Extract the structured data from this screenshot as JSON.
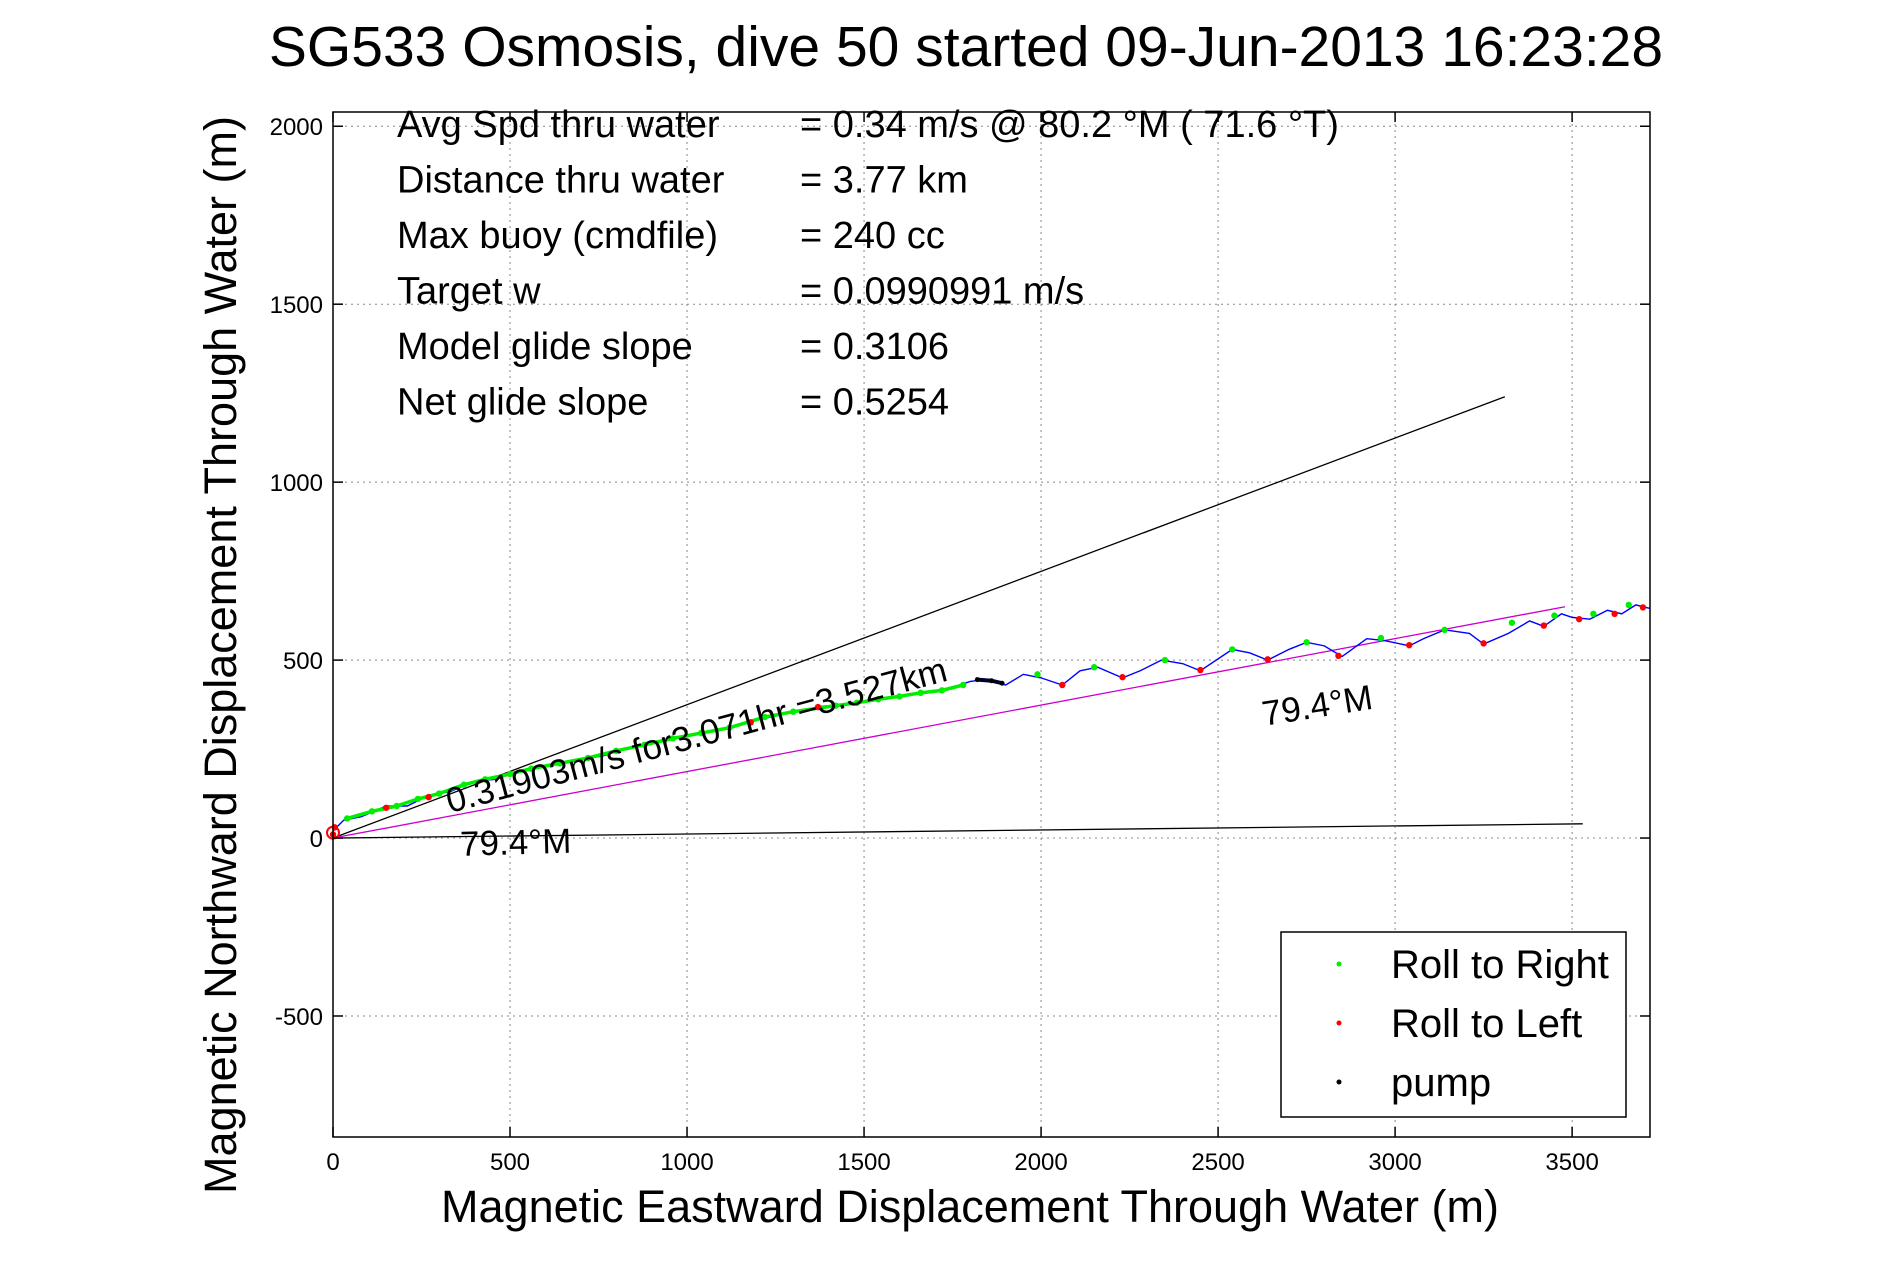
{
  "chart_data": {
    "type": "line",
    "title": "SG533 Osmosis, dive 50 started 09-Jun-2013 16:23:28",
    "xlabel": "Magnetic Eastward Displacement Through Water (m)",
    "ylabel": "Magnetic Northward Displacement Through Water (m)",
    "xlim": [
      0,
      3720
    ],
    "ylim": [
      -840,
      2040
    ],
    "xticks": [
      0,
      500,
      1000,
      1500,
      2000,
      2500,
      3000,
      3500
    ],
    "yticks": [
      -500,
      0,
      500,
      1000,
      1500,
      2000
    ],
    "xtick_labels": [
      "0",
      "500",
      "1000",
      "1500",
      "2000",
      "2500",
      "3000",
      "3500"
    ],
    "ytick_labels": [
      "-500",
      "0",
      "500",
      "1000",
      "1500",
      "2000"
    ],
    "grid": true,
    "stats": [
      {
        "label": "Avg Spd thru water",
        "value": "=  0.34 m/s @  80.2 °M ( 71.6 °T)"
      },
      {
        "label": "Distance thru water",
        "value": "=  3.77 km"
      },
      {
        "label": "Max buoy (cmdfile)",
        "value": "= 240 cc"
      },
      {
        "label": "Target w",
        "value": "= 0.0990991 m/s"
      },
      {
        "label": "Model glide slope",
        "value": "= 0.3106"
      },
      {
        "label": "Net glide slope",
        "value": "= 0.5254"
      }
    ],
    "annotations": [
      {
        "text": "0.31903m/s for3.071hr =3.527km",
        "x": 330,
        "y": 70,
        "angle_deg": -14.9
      },
      {
        "text": "79.4°M",
        "x": 360,
        "y": -50,
        "angle_deg": -1.6
      },
      {
        "text": "79.4°M",
        "x": 2630,
        "y": 315,
        "angle_deg": -9.0
      }
    ],
    "reference_lines": [
      {
        "name": "upper-bound-line",
        "color": "#000000",
        "x": [
          0,
          3310
        ],
        "y": [
          0,
          1240
        ]
      },
      {
        "name": "lower-bound-line",
        "color": "#000000",
        "x": [
          0,
          3530
        ],
        "y": [
          0,
          40
        ]
      },
      {
        "name": "heading-line",
        "color": "#cc00cc",
        "x": [
          0,
          3480
        ],
        "y": [
          0,
          650
        ]
      }
    ],
    "series": [
      {
        "name": "track",
        "color": "#0000ff",
        "x": [
          0,
          30,
          80,
          150,
          210,
          270,
          330,
          400,
          460,
          530,
          600,
          680,
          760,
          840,
          920,
          1000,
          1080,
          1150,
          1190,
          1260,
          1330,
          1380,
          1440,
          1500,
          1560,
          1620,
          1680,
          1740,
          1800,
          1840,
          1900,
          1950,
          2000,
          2060,
          2110,
          2160,
          2230,
          2280,
          2340,
          2400,
          2450,
          2540,
          2590,
          2640,
          2700,
          2750,
          2800,
          2850,
          2920,
          2970,
          3040,
          3080,
          3140,
          3210,
          3250,
          3320,
          3380,
          3420,
          3470,
          3500,
          3550,
          3600,
          3640,
          3680,
          3720
        ],
        "y": [
          20,
          50,
          60,
          90,
          90,
          120,
          130,
          160,
          165,
          190,
          200,
          220,
          230,
          255,
          270,
          290,
          300,
          320,
          330,
          345,
          360,
          370,
          375,
          385,
          392,
          400,
          410,
          420,
          440,
          445,
          430,
          460,
          450,
          430,
          470,
          480,
          450,
          470,
          500,
          490,
          470,
          530,
          520,
          500,
          530,
          550,
          540,
          510,
          560,
          555,
          540,
          560,
          585,
          575,
          545,
          575,
          610,
          595,
          630,
          620,
          615,
          640,
          630,
          655,
          645
        ]
      },
      {
        "name": "Roll to Right",
        "color": "#00ee00",
        "x": [
          40,
          110,
          180,
          240,
          300,
          370,
          430,
          500,
          560,
          640,
          720,
          800,
          880,
          960,
          1040,
          1120,
          1220,
          1300,
          1420,
          1480,
          1540,
          1600,
          1660,
          1720,
          1780,
          1990,
          2150,
          2350,
          2540,
          2750,
          2960,
          3140,
          3330,
          3450,
          3560,
          3660
        ],
        "y": [
          55,
          75,
          90,
          110,
          125,
          150,
          165,
          180,
          195,
          210,
          225,
          245,
          262,
          280,
          295,
          310,
          340,
          355,
          372,
          380,
          390,
          398,
          408,
          415,
          430,
          460,
          480,
          500,
          530,
          550,
          562,
          585,
          605,
          625,
          630,
          655
        ]
      },
      {
        "name": "Roll to Left",
        "color": "#ff0000",
        "x": [
          0,
          5,
          150,
          270,
          1180,
          1370,
          2060,
          2230,
          2450,
          2640,
          2840,
          3040,
          3250,
          3420,
          3520,
          3620,
          3700
        ],
        "y": [
          10,
          30,
          85,
          115,
          325,
          368,
          430,
          452,
          472,
          502,
          512,
          542,
          547,
          597,
          615,
          630,
          648
        ]
      },
      {
        "name": "pump",
        "color": "#000000",
        "x": [
          1820,
          1860,
          1890
        ],
        "y": [
          445,
          442,
          435
        ]
      }
    ],
    "legend": {
      "position": "bottom-right",
      "entries": [
        {
          "label": "Roll to Right",
          "color": "#00ee00"
        },
        {
          "label": "Roll to Left",
          "color": "#ff0000"
        },
        {
          "label": "pump",
          "color": "#000000"
        }
      ]
    }
  }
}
